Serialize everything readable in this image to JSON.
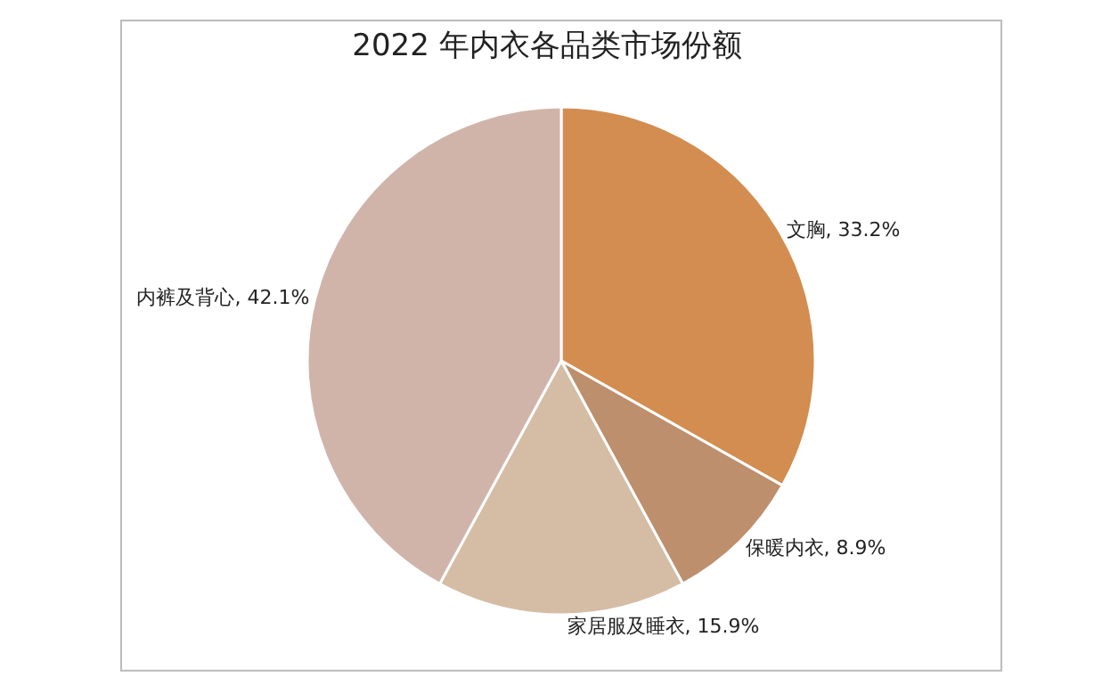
{
  "chart_data": {
    "type": "pie",
    "title": "2022 年内衣各品类市场份额",
    "categories": [
      "文胸",
      "保暖内衣",
      "家居服及睡衣",
      "内裤及背心"
    ],
    "values": [
      33.2,
      8.9,
      15.9,
      42.1
    ],
    "value_labels": [
      "33.2%",
      "8.9%",
      "15.9%",
      "42.1%"
    ],
    "colors": [
      "#d38d50",
      "#bd8f6d",
      "#d5bca4",
      "#d0b4aa"
    ],
    "legend": false
  }
}
